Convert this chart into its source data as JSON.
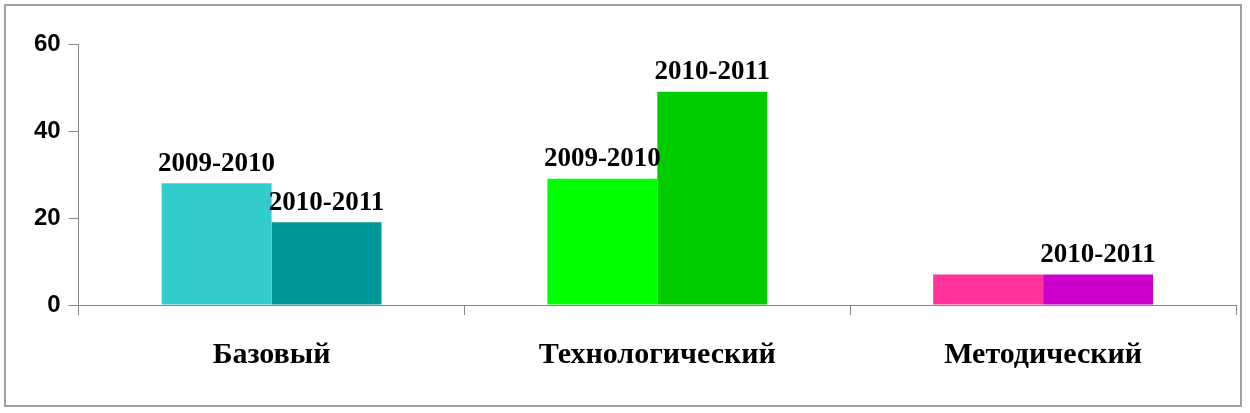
{
  "chart_data": {
    "type": "bar",
    "categories": [
      "Базовый",
      "Технологический",
      "Методический"
    ],
    "series": [
      {
        "colors": [
          "#33cccc",
          "#00ff00",
          "#ff3399"
        ],
        "values": [
          28,
          29,
          7
        ]
      },
      {
        "colors": [
          "#009999",
          "#00cc00",
          "#cc00cc"
        ],
        "values": [
          19,
          49,
          7
        ]
      }
    ],
    "ylim": [
      0,
      60
    ],
    "yticks": [
      0,
      20,
      40,
      60
    ],
    "grid": false,
    "legend": false,
    "annotations": [
      {
        "text": "2009-2010",
        "x": "Базовый",
        "y": 28
      },
      {
        "text": "2010-2011",
        "x": "Базовый",
        "y": 19
      },
      {
        "text": "2009-2010",
        "x": "Технологический",
        "y": 29
      },
      {
        "text": "2010-2011",
        "x": "Технологический",
        "y": 49
      },
      {
        "text": "2010-2011",
        "x": "Методический",
        "y": 7
      }
    ]
  }
}
